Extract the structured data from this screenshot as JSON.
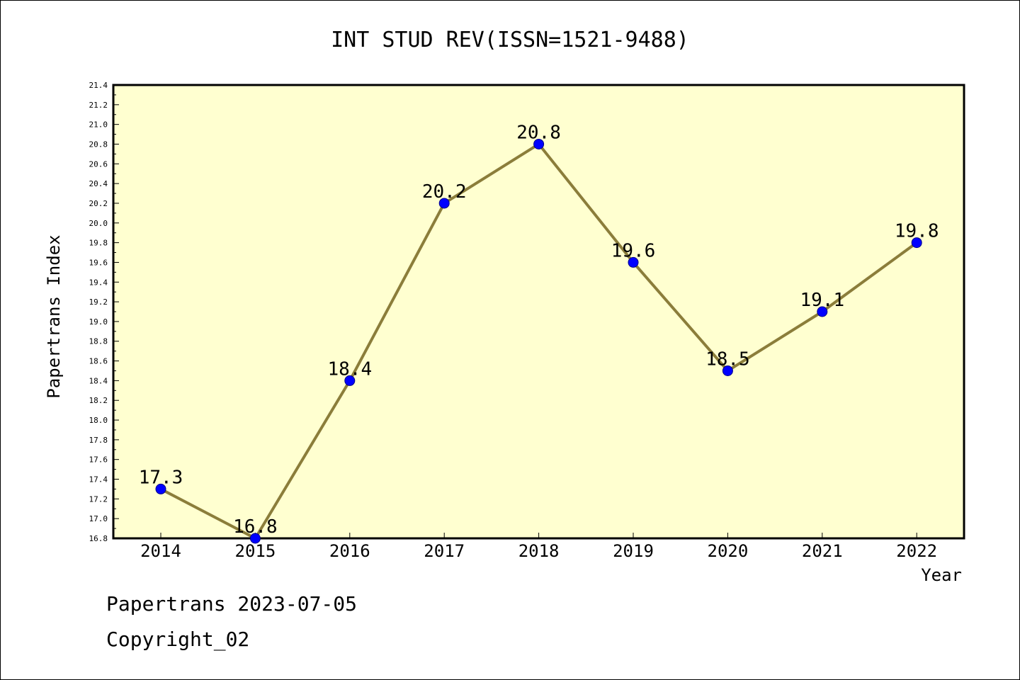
{
  "chart_data": {
    "type": "line",
    "title": "INT STUD REV(ISSN=1521-9488)",
    "xlabel": "Year",
    "ylabel": "Papertrans Index",
    "categories": [
      "2014",
      "2015",
      "2016",
      "2017",
      "2018",
      "2019",
      "2020",
      "2021",
      "2022"
    ],
    "series": [
      {
        "values": [
          17.3,
          16.8,
          18.4,
          20.2,
          20.8,
          19.6,
          18.5,
          19.1,
          19.8
        ],
        "data_labels": [
          "17.3",
          "16.8",
          "18.4",
          "20.2",
          "20.8",
          "19.6",
          "18.5",
          "19.1",
          "19.8"
        ]
      }
    ],
    "ylim": [
      16.8,
      21.4
    ],
    "yticks": [
      "16.8",
      "17.0",
      "17.2",
      "17.4",
      "17.6",
      "17.8",
      "18.0",
      "18.2",
      "18.4",
      "18.6",
      "18.8",
      "19.0",
      "19.2",
      "19.4",
      "19.6",
      "19.8",
      "20.0",
      "20.2",
      "20.4",
      "20.6",
      "20.8",
      "21.0",
      "21.2",
      "21.4"
    ],
    "grid": false,
    "legend": "none",
    "colors": {
      "plot_background": "#ffffd0",
      "line": "#8b7d3a",
      "marker": "#0000ff"
    }
  },
  "footer": {
    "line1": "Papertrans 2023-07-05",
    "line2": "Copyright_02"
  }
}
